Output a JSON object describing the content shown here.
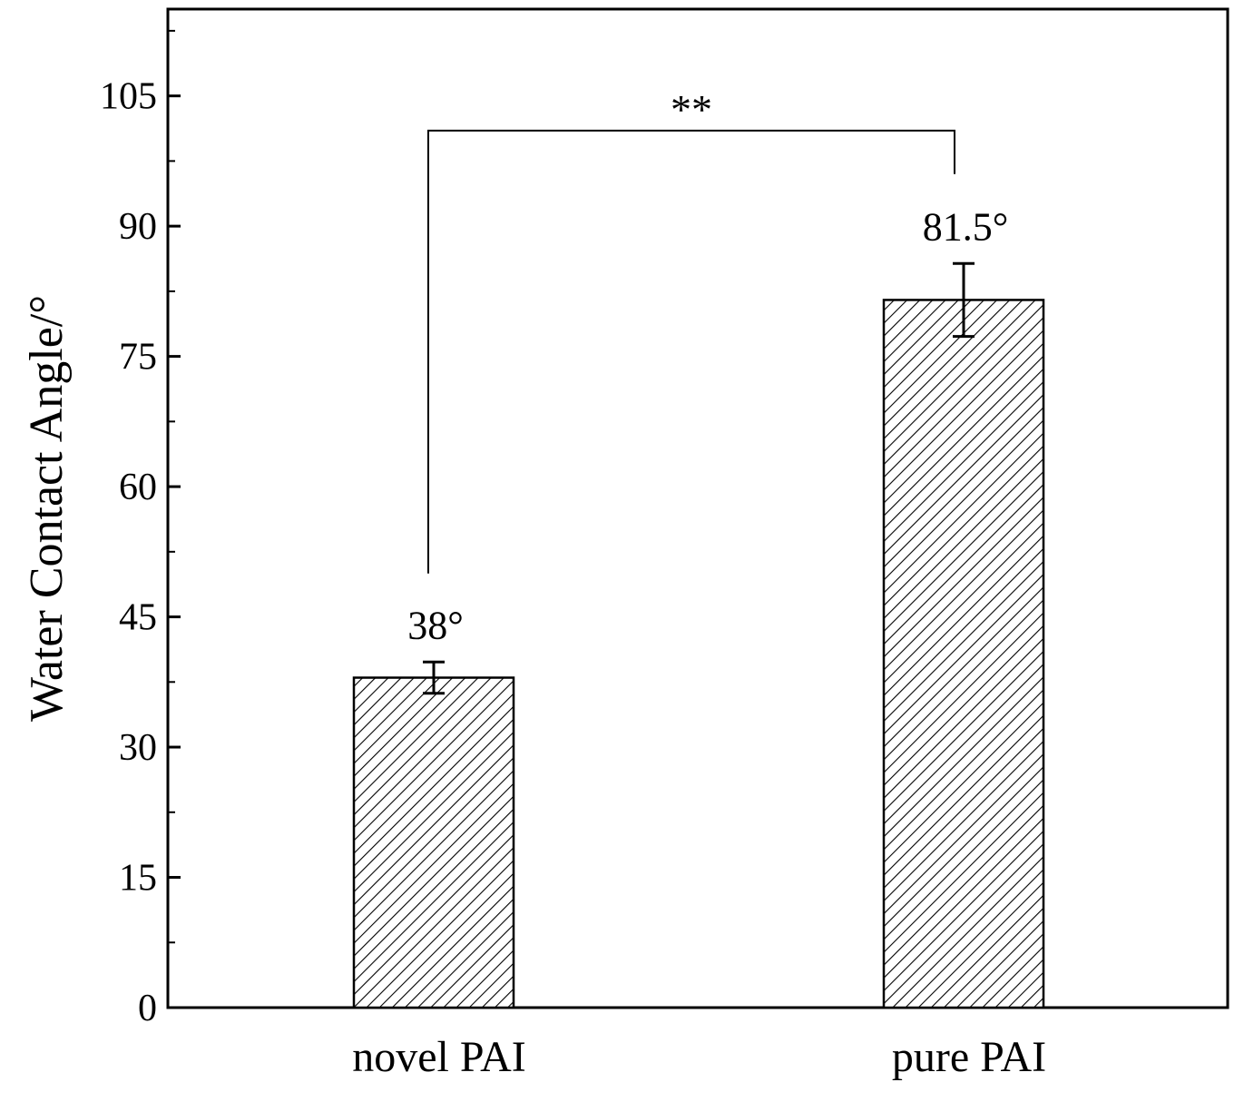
{
  "chart_data": {
    "type": "bar",
    "categories": [
      "novel PAI",
      "pure PAI"
    ],
    "values": [
      38,
      81.5
    ],
    "errors": [
      1.8,
      4.2
    ],
    "data_labels": [
      "38°",
      "81.5°"
    ],
    "title": "",
    "xlabel": "",
    "ylabel": "Water Contact Angle/°",
    "ylim": [
      0,
      115
    ],
    "yticks": [
      0,
      15,
      30,
      45,
      60,
      75,
      90,
      105
    ],
    "ytick_labels": [
      "0",
      "15",
      "30",
      "45",
      "60",
      "75",
      "90",
      "105"
    ],
    "grid": false,
    "bar_pattern": "diagonal-hatch",
    "significance": {
      "label": "**",
      "from_category": "novel PAI",
      "to_category": "pure PAI",
      "bracket_y": 101,
      "left_end_y": 50,
      "right_end_y": 96
    },
    "colors": {
      "axis": "#000000",
      "bar_fill": "#ffffff",
      "hatch": "#000000"
    }
  }
}
